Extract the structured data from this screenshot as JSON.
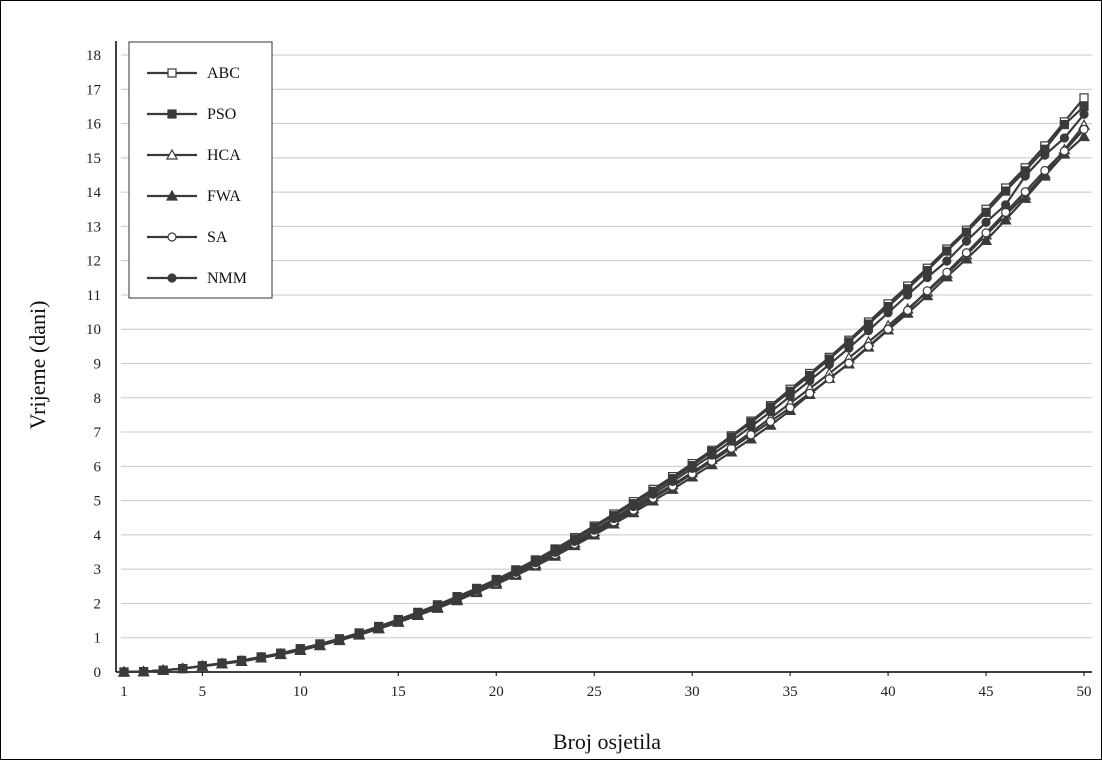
{
  "chart_data": {
    "type": "line",
    "title": "",
    "xlabel": "Broj osjetila",
    "ylabel": "Vrijeme (dani)",
    "xlim": [
      1,
      50
    ],
    "ylim": [
      0,
      18
    ],
    "x_ticks": [
      1,
      5,
      10,
      15,
      20,
      25,
      30,
      35,
      40,
      45,
      50
    ],
    "y_ticks": [
      0,
      1,
      2,
      3,
      4,
      5,
      6,
      7,
      8,
      9,
      10,
      11,
      12,
      13,
      14,
      15,
      16,
      17,
      18
    ],
    "grid": "horizontal",
    "legend_position": "top-left",
    "x": [
      1,
      2,
      3,
      4,
      5,
      6,
      7,
      8,
      9,
      10,
      11,
      12,
      13,
      14,
      15,
      16,
      17,
      18,
      19,
      20,
      21,
      22,
      23,
      24,
      25,
      26,
      27,
      28,
      29,
      30,
      31,
      32,
      33,
      34,
      35,
      36,
      37,
      38,
      39,
      40,
      41,
      42,
      43,
      44,
      45,
      46,
      47,
      48,
      49,
      50
    ],
    "series": [
      {
        "name": "ABC",
        "marker": "open-square",
        "values": [
          0.0,
          0.01,
          0.05,
          0.1,
          0.18,
          0.26,
          0.34,
          0.44,
          0.55,
          0.68,
          0.82,
          0.97,
          1.14,
          1.33,
          1.53,
          1.74,
          1.96,
          2.2,
          2.44,
          2.7,
          2.98,
          3.27,
          3.59,
          3.92,
          4.26,
          4.61,
          4.97,
          5.33,
          5.7,
          6.08,
          6.47,
          6.89,
          7.32,
          7.77,
          8.25,
          8.71,
          9.18,
          9.68,
          10.21,
          10.74,
          11.26,
          11.78,
          12.34,
          12.89,
          13.5,
          14.12,
          14.71,
          15.35,
          16.05,
          16.75
        ]
      },
      {
        "name": "PSO",
        "marker": "filled-square",
        "values": [
          0.0,
          0.01,
          0.05,
          0.1,
          0.18,
          0.25,
          0.33,
          0.43,
          0.54,
          0.67,
          0.81,
          0.96,
          1.13,
          1.32,
          1.52,
          1.73,
          1.95,
          2.19,
          2.43,
          2.69,
          2.97,
          3.26,
          3.56,
          3.88,
          4.22,
          4.56,
          4.91,
          5.27,
          5.64,
          6.02,
          6.43,
          6.85,
          7.28,
          7.73,
          8.19,
          8.65,
          9.13,
          9.63,
          10.15,
          10.66,
          11.18,
          11.71,
          12.28,
          12.83,
          13.41,
          14.03,
          14.62,
          15.25,
          15.97,
          16.5
        ]
      },
      {
        "name": "HCA",
        "marker": "open-triangle",
        "values": [
          0.0,
          0.01,
          0.05,
          0.1,
          0.17,
          0.24,
          0.31,
          0.41,
          0.52,
          0.64,
          0.78,
          0.93,
          1.1,
          1.28,
          1.47,
          1.67,
          1.89,
          2.12,
          2.36,
          2.61,
          2.87,
          3.15,
          3.45,
          3.77,
          4.09,
          4.42,
          4.76,
          5.11,
          5.46,
          5.82,
          6.2,
          6.59,
          6.99,
          7.41,
          7.84,
          8.27,
          8.71,
          9.16,
          9.63,
          10.1,
          10.59,
          11.09,
          11.62,
          12.17,
          12.75,
          13.33,
          13.91,
          14.53,
          15.24,
          15.95
        ]
      },
      {
        "name": "FWA",
        "marker": "filled-triangle",
        "values": [
          0.0,
          0.01,
          0.05,
          0.1,
          0.17,
          0.24,
          0.31,
          0.41,
          0.51,
          0.63,
          0.77,
          0.92,
          1.08,
          1.26,
          1.45,
          1.65,
          1.86,
          2.08,
          2.32,
          2.56,
          2.82,
          3.09,
          3.38,
          3.69,
          4.0,
          4.32,
          4.65,
          4.99,
          5.33,
          5.69,
          6.05,
          6.42,
          6.8,
          7.2,
          7.63,
          8.1,
          8.57,
          8.99,
          9.48,
          9.98,
          10.47,
          10.98,
          11.53,
          12.05,
          12.59,
          13.19,
          13.82,
          14.47,
          15.11,
          15.62
        ]
      },
      {
        "name": "SA",
        "marker": "open-circle",
        "values": [
          0.0,
          0.01,
          0.05,
          0.1,
          0.17,
          0.24,
          0.32,
          0.42,
          0.52,
          0.64,
          0.78,
          0.93,
          1.09,
          1.27,
          1.46,
          1.66,
          1.88,
          2.11,
          2.34,
          2.59,
          2.85,
          3.12,
          3.42,
          3.73,
          4.05,
          4.38,
          4.72,
          5.07,
          5.42,
          5.78,
          6.15,
          6.53,
          6.92,
          7.31,
          7.71,
          8.13,
          8.55,
          9.01,
          9.5,
          10.0,
          10.55,
          11.12,
          11.66,
          12.23,
          12.81,
          13.41,
          14.01,
          14.63,
          15.2,
          15.83
        ]
      },
      {
        "name": "NMM",
        "marker": "filled-circle",
        "values": [
          0.0,
          0.01,
          0.05,
          0.1,
          0.17,
          0.25,
          0.32,
          0.42,
          0.53,
          0.65,
          0.79,
          0.94,
          1.11,
          1.29,
          1.49,
          1.69,
          1.91,
          2.14,
          2.38,
          2.64,
          2.91,
          3.19,
          3.49,
          3.81,
          4.14,
          4.48,
          4.83,
          5.19,
          5.56,
          5.94,
          6.33,
          6.74,
          7.16,
          7.59,
          8.04,
          8.5,
          8.97,
          9.45,
          9.96,
          10.48,
          11.0,
          11.51,
          11.99,
          12.57,
          13.12,
          13.63,
          14.47,
          15.08,
          15.58,
          16.27
        ]
      }
    ]
  },
  "colors": {
    "series_line": "#3a3a3a",
    "grid": "#c8c8c8",
    "axis": "#000000"
  }
}
